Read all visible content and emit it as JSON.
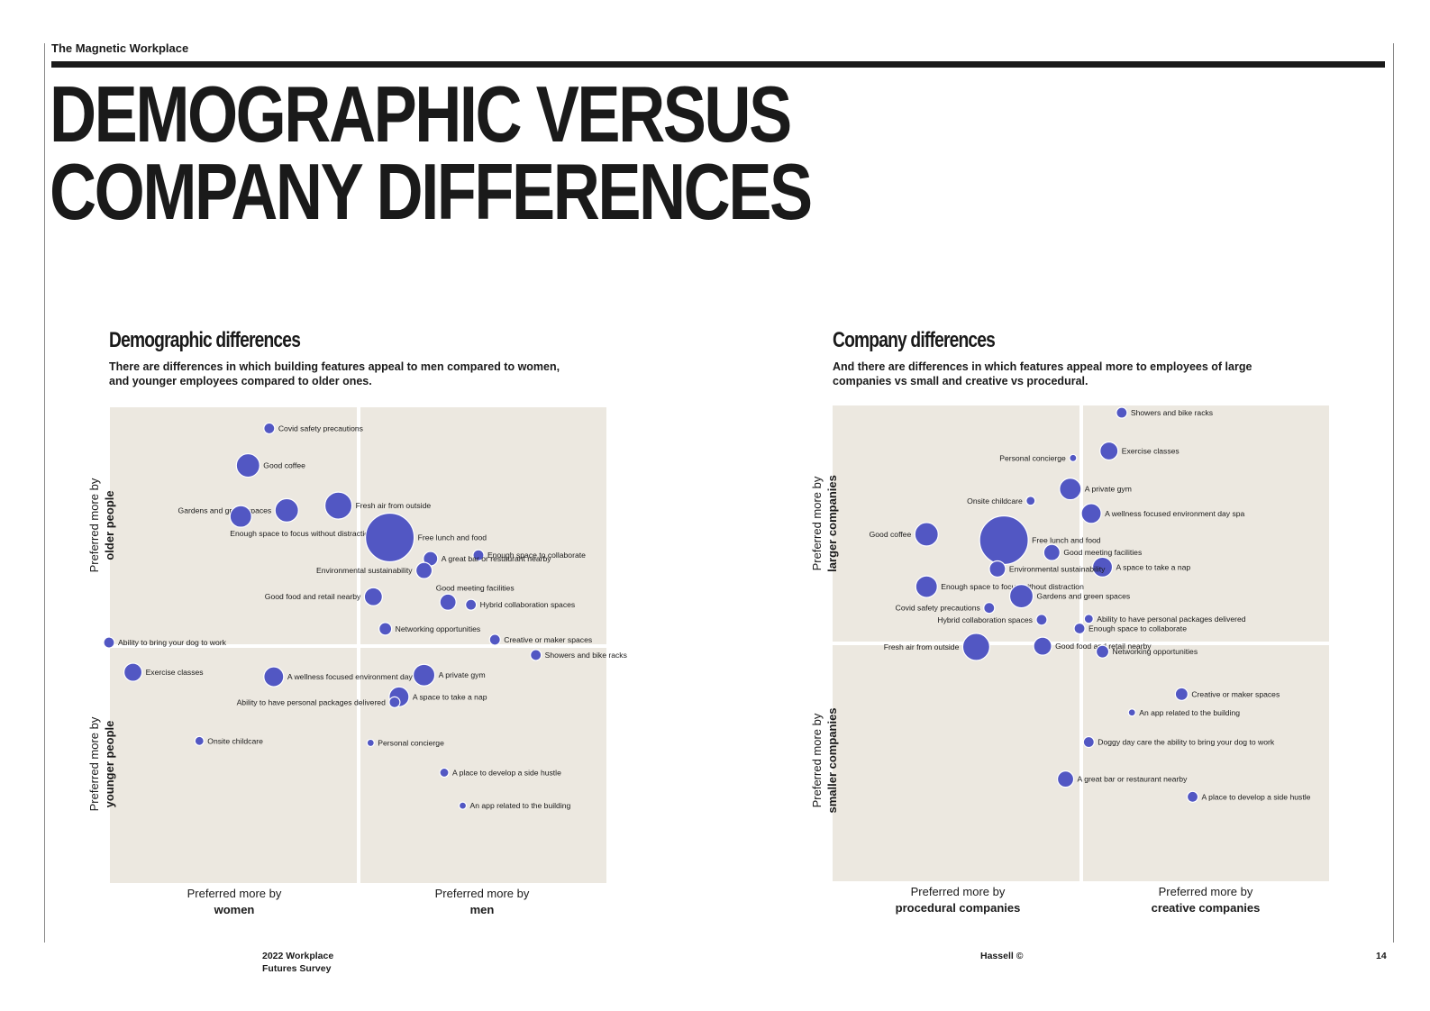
{
  "header": {
    "running_title": "The Magnetic Workplace"
  },
  "main_title": {
    "line1": "DEMOGRAPHIC VERSUS",
    "line2": "COMPANY DIFFERENCES"
  },
  "accent_color": "#5257c3",
  "plot_background": "#ece8e0",
  "footer": {
    "survey_line1": "2022 Workplace",
    "survey_line2": "Futures Survey",
    "copyright": "Hassell ©",
    "page_number": "14"
  },
  "chart_data": [
    {
      "type": "scatter",
      "title": "Demographic differences",
      "subtitle_line1": "There are differences in which building features appeal to men compared to women,",
      "subtitle_line2": "and younger employees compared to older ones.",
      "x_axis": {
        "negative_label": "Preferred more by",
        "negative_bold": "women",
        "positive_label": "Preferred more by",
        "positive_bold": "men"
      },
      "y_axis": {
        "positive_label": "Preferred more by",
        "positive_bold": "older people",
        "negative_label": "Preferred more by",
        "negative_bold": "younger people"
      },
      "xlim": [
        -1,
        1
      ],
      "ylim": [
        -1,
        1
      ],
      "points": [
        {
          "label": "Covid safety precautions",
          "x": -0.358,
          "y": 0.922,
          "size": 6,
          "label_side": "right"
        },
        {
          "label": "Good coffee",
          "x": -0.443,
          "y": 0.765,
          "size": 13,
          "label_side": "right"
        },
        {
          "label": "Gardens and green spaces",
          "x": -0.288,
          "y": 0.575,
          "size": 13,
          "label_side": "left"
        },
        {
          "label": "Fresh air from outside",
          "x": -0.081,
          "y": 0.595,
          "size": 15,
          "label_side": "right"
        },
        {
          "label": "Enough space to focus without distraction",
          "x": -0.472,
          "y": 0.549,
          "size": 12,
          "label_side": "below"
        },
        {
          "label": "Free lunch and food",
          "x": 0.125,
          "y": 0.46,
          "size": 27,
          "label_side": "right"
        },
        {
          "label": "Enough space to collaborate",
          "x": 0.48,
          "y": 0.385,
          "size": 6,
          "label_side": "right"
        },
        {
          "label": "A great bar or restaurant nearby",
          "x": 0.288,
          "y": 0.37,
          "size": 8,
          "label_side": "right"
        },
        {
          "label": "Environmental sustainability",
          "x": 0.262,
          "y": 0.32,
          "size": 9,
          "label_side": "left"
        },
        {
          "label": "Good food and retail nearby",
          "x": 0.059,
          "y": 0.209,
          "size": 10,
          "label_side": "left"
        },
        {
          "label": "Good meeting facilities",
          "x": 0.358,
          "y": 0.186,
          "size": 9,
          "label_side": "above"
        },
        {
          "label": "Hybrid collaboration spaces",
          "x": 0.45,
          "y": 0.175,
          "size": 6,
          "label_side": "right"
        },
        {
          "label": "Networking opportunities",
          "x": 0.107,
          "y": 0.073,
          "size": 7,
          "label_side": "right"
        },
        {
          "label": "Creative or maker spaces",
          "x": 0.546,
          "y": 0.027,
          "size": 6,
          "label_side": "right"
        },
        {
          "label": "Showers and bike racks",
          "x": 0.71,
          "y": -0.038,
          "size": 6,
          "label_side": "right"
        },
        {
          "label": "Ability to bring your dog to work",
          "x": -1.0,
          "y": 0.015,
          "size": 6,
          "label_side": "right"
        },
        {
          "label": "Exercise classes",
          "x": -0.904,
          "y": -0.111,
          "size": 10,
          "label_side": "right"
        },
        {
          "label": "A wellness focused environment day spa",
          "x": -0.34,
          "y": -0.13,
          "size": 11,
          "label_side": "right"
        },
        {
          "label": "A private gym",
          "x": 0.262,
          "y": -0.123,
          "size": 12,
          "label_side": "right"
        },
        {
          "label": "A space to take a nap",
          "x": 0.162,
          "y": -0.215,
          "size": 11,
          "label_side": "right"
        },
        {
          "label": "Ability to have personal packages delivered",
          "x": 0.144,
          "y": -0.238,
          "size": 6,
          "label_side": "left"
        },
        {
          "label": "Onsite childcare",
          "x": -0.638,
          "y": -0.402,
          "size": 5,
          "label_side": "right"
        },
        {
          "label": "Personal concierge",
          "x": 0.048,
          "y": -0.41,
          "size": 4,
          "label_side": "right"
        },
        {
          "label": "A place to develop a side hustle",
          "x": 0.343,
          "y": -0.536,
          "size": 5,
          "label_side": "right"
        },
        {
          "label": "An app related to the building",
          "x": 0.417,
          "y": -0.676,
          "size": 4,
          "label_side": "right"
        }
      ]
    },
    {
      "type": "scatter",
      "title": "Company differences",
      "subtitle_line1": "And there are differences in which features appeal more to employees of large",
      "subtitle_line2": "companies vs small and creative vs procedural.",
      "x_axis": {
        "negative_label": "Preferred more by",
        "negative_bold": "procedural companies",
        "positive_label": "Preferred more by",
        "positive_bold": "creative companies"
      },
      "y_axis": {
        "positive_label": "Preferred more by",
        "positive_bold": "larger companies",
        "negative_label": "Preferred more by",
        "negative_bold": "smaller companies"
      },
      "xlim": [
        -1,
        1
      ],
      "ylim": [
        -1,
        1
      ],
      "points": [
        {
          "label": "Showers and bike racks",
          "x": 0.162,
          "y": 0.977,
          "size": 6,
          "label_side": "right"
        },
        {
          "label": "Exercise classes",
          "x": 0.111,
          "y": 0.815,
          "size": 10,
          "label_side": "right"
        },
        {
          "label": "Personal concierge",
          "x": -0.033,
          "y": 0.785,
          "size": 4,
          "label_side": "left"
        },
        {
          "label": "A private gym",
          "x": -0.044,
          "y": 0.654,
          "size": 12,
          "label_side": "right"
        },
        {
          "label": "Onsite childcare",
          "x": -0.203,
          "y": 0.604,
          "size": 5,
          "label_side": "left"
        },
        {
          "label": "A wellness focused environment day spa",
          "x": 0.04,
          "y": 0.55,
          "size": 11,
          "label_side": "right"
        },
        {
          "label": "Good coffee",
          "x": -0.62,
          "y": 0.462,
          "size": 13,
          "label_side": "left"
        },
        {
          "label": "Free lunch and food",
          "x": -0.31,
          "y": 0.437,
          "size": 27,
          "label_side": "right"
        },
        {
          "label": "Good meeting facilities",
          "x": -0.118,
          "y": 0.385,
          "size": 9,
          "label_side": "right"
        },
        {
          "label": "A space to take a nap",
          "x": 0.085,
          "y": 0.323,
          "size": 11,
          "label_side": "right"
        },
        {
          "label": "Environmental sustainability",
          "x": -0.336,
          "y": 0.315,
          "size": 9,
          "label_side": "right"
        },
        {
          "label": "Enough space to focus without distraction",
          "x": -0.62,
          "y": 0.24,
          "size": 12,
          "label_side": "right"
        },
        {
          "label": "Gardens and green spaces",
          "x": -0.24,
          "y": 0.2,
          "size": 13,
          "label_side": "right"
        },
        {
          "label": "Covid safety precautions",
          "x": -0.369,
          "y": 0.15,
          "size": 6,
          "label_side": "left"
        },
        {
          "label": "Hybrid collaboration spaces",
          "x": -0.159,
          "y": 0.1,
          "size": 6,
          "label_side": "left"
        },
        {
          "label": "Ability to have personal packages delivered",
          "x": 0.03,
          "y": 0.104,
          "size": 5,
          "label_side": "right"
        },
        {
          "label": "Enough space to collaborate",
          "x": -0.007,
          "y": 0.063,
          "size": 6,
          "label_side": "right"
        },
        {
          "label": "Good food and retail nearby",
          "x": -0.155,
          "y": -0.012,
          "size": 10,
          "label_side": "right"
        },
        {
          "label": "Fresh air from outside",
          "x": -0.421,
          "y": -0.015,
          "size": 15,
          "label_side": "left"
        },
        {
          "label": "Networking opportunities",
          "x": 0.085,
          "y": -0.035,
          "size": 7,
          "label_side": "right"
        },
        {
          "label": "Creative or maker spaces",
          "x": 0.402,
          "y": -0.215,
          "size": 7,
          "label_side": "right"
        },
        {
          "label": "An app related to the building",
          "x": 0.203,
          "y": -0.293,
          "size": 4,
          "label_side": "right"
        },
        {
          "label": "Doggy day care the ability to bring your dog to work",
          "x": 0.03,
          "y": -0.418,
          "size": 6,
          "label_side": "right"
        },
        {
          "label": "A great bar or restaurant nearby",
          "x": -0.063,
          "y": -0.575,
          "size": 9,
          "label_side": "right"
        },
        {
          "label": "A place to develop a side hustle",
          "x": 0.446,
          "y": -0.65,
          "size": 6,
          "label_side": "right"
        }
      ]
    }
  ]
}
